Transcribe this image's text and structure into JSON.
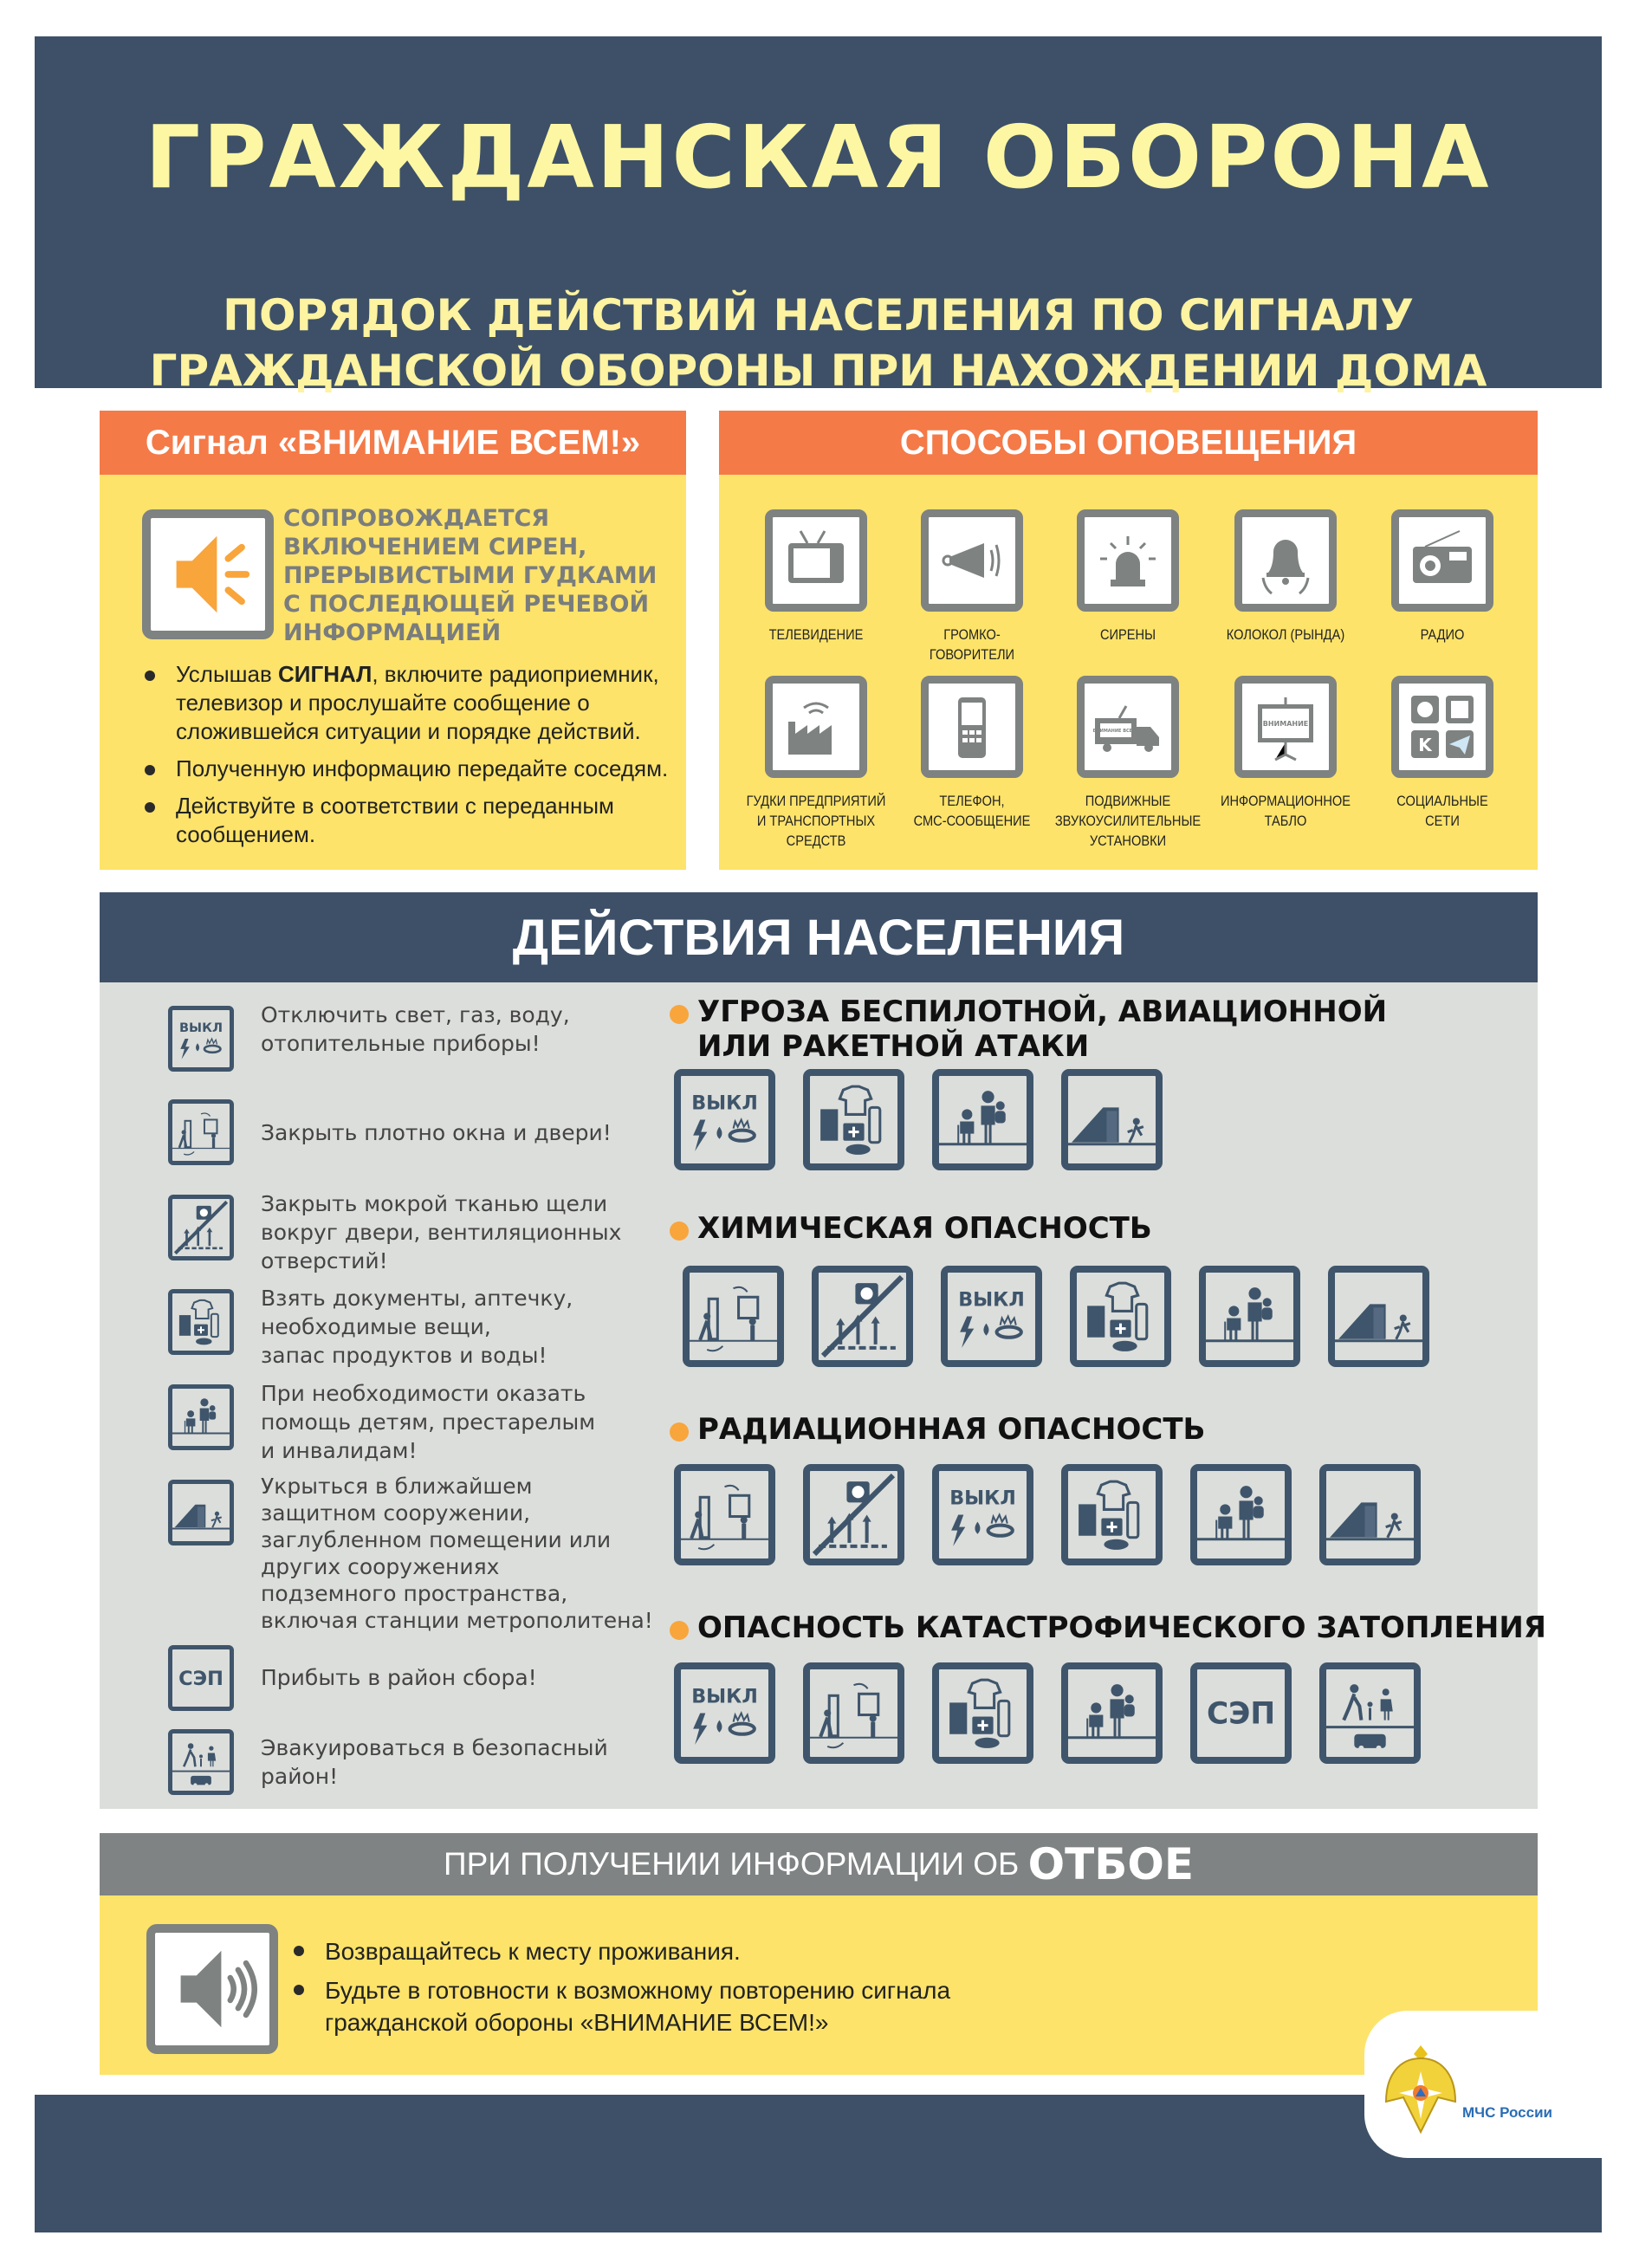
{
  "header": {
    "title": "ГРАЖДАНСКАЯ ОБОРОНА",
    "subtitle_line1": "ПОРЯДОК ДЕЙСТВИЙ НАСЕЛЕНИЯ ПО СИГНАЛУ",
    "subtitle_line2": "ГРАЖДАНСКОЙ ОБОРОНЫ ПРИ НАХОЖДЕНИИ ДОМА"
  },
  "signal": {
    "title": "Сигнал  «ВНИМАНИЕ ВСЕМ!»",
    "icon": "speaker-loud-icon",
    "description": [
      "СОПРОВОЖДАЕТСЯ",
      "ВКЛЮЧЕНИЕМ СИРЕН,",
      "ПРЕРЫВИСТЫМИ ГУДКАМИ",
      "С ПОСЛЕДЮЩЕЙ РЕЧЕВОЙ",
      "ИНФОРМАЦИЕЙ"
    ],
    "bullet1_pre": "Услышав ",
    "bullet1_bold": "СИГНАЛ",
    "bullet1_post": ", включите радиоприемник, телевизор и прослушайте сообщение о сложившейся ситуации и порядке действий.",
    "bullet2": "Полученную информацию передайте соседям.",
    "bullet3": "Действуйте в соответствии с переданным сообщением."
  },
  "methods": {
    "title": "СПОСОБЫ ОПОВЕЩЕНИЯ",
    "items": [
      {
        "label": "ТЕЛЕВИДЕНИЕ",
        "icon": "tv"
      },
      {
        "label": "ГРОМКО-\nГОВОРИТЕЛИ",
        "icon": "loudspeaker"
      },
      {
        "label": "СИРЕНЫ",
        "icon": "siren"
      },
      {
        "label": "КОЛОКОЛ (РЫНДА)",
        "icon": "bell"
      },
      {
        "label": "РАДИО",
        "icon": "radio"
      },
      {
        "label": "ГУДКИ ПРЕДПРИЯТИЙ\nИ ТРАНСПОРТНЫХ\nСРЕДСТВ",
        "icon": "factory"
      },
      {
        "label": "ТЕЛЕФОН,\nСМС-СООБЩЕНИЕ",
        "icon": "phone"
      },
      {
        "label": "ПОДВИЖНЫЕ\nЗВУКОУСИЛИТЕЛЬНЫЕ\nУСТАНОВКИ",
        "icon": "van",
        "icon_text": "ВНИМАНИЕ ВСЕМ!"
      },
      {
        "label": "ИНФОРМАЦИОННОЕ\nТАБЛО",
        "icon": "board",
        "icon_text": "ВНИМАНИЕ"
      },
      {
        "label": "СОЦИАЛЬНЫЕ\nСЕТИ",
        "icon": "social"
      }
    ]
  },
  "actions": {
    "title": "ДЕЙСТВИЯ НАСЕЛЕНИЯ",
    "off_text": "ВЫКЛ",
    "sep_text": "СЭП",
    "list": [
      {
        "icon": "off",
        "text": "Отключить свет, газ, воду,\nотопительные приборы!"
      },
      {
        "icon": "doors",
        "text": "Закрыть плотно окна и двери!"
      },
      {
        "icon": "seal",
        "text": "Закрыть мокрой тканью щели\nвокруг двери, вентиляционных\nотверстий!"
      },
      {
        "icon": "kit",
        "text": "Взять документы, аптечку,\nнеобходимые вещи,\nзапас продуктов и воды!"
      },
      {
        "icon": "help",
        "text": "При необходимости оказать\nпомощь детям, престарелым\nи инвалидам!"
      },
      {
        "icon": "shelter",
        "text": "Укрыться в ближайшем\nзащитном сооружении,\nзаглубленном помещении или\nдругих сооружениях\nподземного пространства,\nвключая станции метрополитена!"
      },
      {
        "icon": "sep",
        "text": "Прибыть в район сбора!"
      },
      {
        "icon": "evac",
        "text": "Эвакуироваться в безопасный\nрайон!"
      }
    ],
    "hazards": [
      {
        "title": "УГРОЗА БЕСПИЛОТНОЙ, АВИАЦИОННОЙ\nИЛИ РАКЕТНОЙ АТАКИ",
        "icons": [
          "off",
          "kit",
          "help",
          "shelter"
        ]
      },
      {
        "title": "ХИМИЧЕСКАЯ ОПАСНОСТЬ",
        "icons": [
          "doors",
          "seal",
          "off",
          "kit",
          "help",
          "shelter"
        ]
      },
      {
        "title": "РАДИАЦИОННАЯ ОПАСНОСТЬ",
        "icons": [
          "doors",
          "seal",
          "off",
          "kit",
          "help",
          "shelter"
        ]
      },
      {
        "title": "ОПАСНОСТЬ КАТАСТРОФИЧЕСКОГО ЗАТОПЛЕНИЯ",
        "icons": [
          "off",
          "doors",
          "kit",
          "help",
          "sep",
          "evac"
        ]
      }
    ]
  },
  "otboy": {
    "title_pre": "ПРИ ПОЛУЧЕНИИ ИНФОРМАЦИИ ОБ ",
    "title_bold": "ОТБОЕ",
    "icon": "speaker-quiet-icon",
    "bullet1": "Возвращайтесь к месту проживания.",
    "bullet2": "Будьте в готовности к возможному повторению сигнала гражданской обороны «ВНИМАНИЕ ВСЕМ!»"
  },
  "footer": {
    "logo_text": "МЧС России"
  },
  "colors": {
    "navy": "#3d5068",
    "yellow": "#fde36a",
    "orange": "#f47a48",
    "gray": "#dcdedb",
    "accent": "#f8a53c"
  }
}
